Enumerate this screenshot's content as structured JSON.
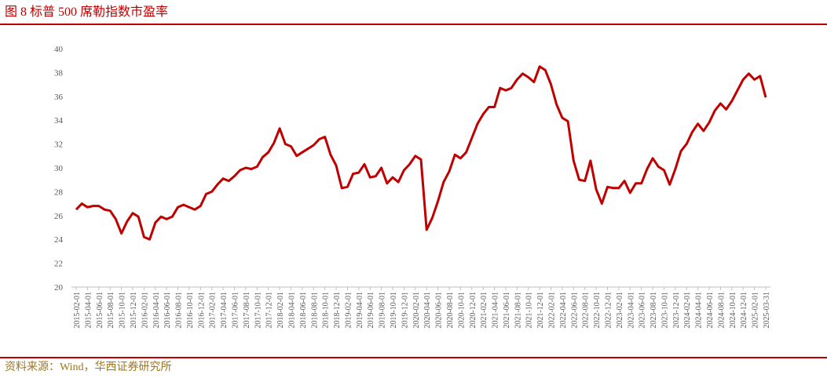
{
  "chart_data": {
    "type": "line",
    "title": "图 8  标普 500 席勒指数市盈率",
    "source": "资料来源：Wind，华西证券研究所",
    "color": "#C00000",
    "ylim": [
      20,
      40
    ],
    "yticks": [
      20,
      22,
      24,
      26,
      28,
      30,
      32,
      34,
      36,
      38,
      40
    ],
    "grid": false,
    "categories": [
      "2015-02-01",
      null,
      "2015-04-01",
      null,
      "2015-06-01",
      null,
      "2015-08-01",
      null,
      "2015-10-01",
      null,
      "2015-12-01",
      null,
      "2016-02-01",
      null,
      "2016-04-01",
      null,
      "2016-06-01",
      null,
      "2016-08-01",
      null,
      "2016-10-01",
      null,
      "2016-12-01",
      null,
      "2017-02-01",
      null,
      "2017-04-01",
      null,
      "2017-06-01",
      null,
      "2017-08-01",
      null,
      "2017-10-01",
      null,
      "2017-12-01",
      null,
      "2018-02-01",
      null,
      "2018-04-01",
      null,
      "2018-06-01",
      null,
      "2018-08-01",
      null,
      "2018-10-01",
      null,
      "2018-12-01",
      null,
      "2019-02-01",
      null,
      "2019-04-01",
      null,
      "2019-06-01",
      null,
      "2019-08-01",
      null,
      "2019-10-01",
      null,
      "2019-12-01",
      null,
      "2020-02-01",
      null,
      "2020-04-01",
      null,
      "2020-06-01",
      null,
      "2020-08-01",
      null,
      "2020-10-01",
      null,
      "2020-12-01",
      null,
      "2021-02-01",
      null,
      "2021-04-01",
      null,
      "2021-06-01",
      null,
      "2021-08-01",
      null,
      "2021-10-01",
      null,
      "2021-12-01",
      null,
      "2022-02-01",
      null,
      "2022-04-01",
      null,
      "2022-06-01",
      null,
      "2022-08-01",
      null,
      "2022-10-01",
      null,
      "2022-12-01",
      null,
      "2023-02-01",
      null,
      "2023-04-01",
      null,
      "2023-06-01",
      null,
      "2023-08-01",
      null,
      "2023-10-01",
      null,
      "2023-12-01",
      null,
      "2024-02-01",
      null,
      "2024-04-01",
      null,
      "2024-06-01",
      null,
      "2024-08-01",
      null,
      "2024-10-01",
      null,
      "2024-12-01",
      null,
      "2025-02-01",
      null,
      "2025-03-31"
    ],
    "values": [
      26.5,
      27.0,
      26.7,
      26.8,
      26.8,
      26.5,
      26.4,
      25.7,
      24.5,
      25.5,
      26.2,
      25.9,
      24.2,
      24.0,
      25.4,
      25.9,
      25.7,
      25.9,
      26.7,
      26.9,
      26.7,
      26.5,
      26.8,
      27.8,
      28.0,
      28.6,
      29.1,
      28.9,
      29.3,
      29.8,
      30.0,
      29.9,
      30.1,
      30.9,
      31.3,
      32.1,
      33.3,
      32.0,
      31.8,
      31.0,
      31.3,
      31.6,
      31.9,
      32.4,
      32.6,
      31.1,
      30.2,
      28.3,
      28.4,
      29.5,
      29.6,
      30.3,
      29.2,
      29.3,
      30.0,
      28.7,
      29.2,
      28.8,
      29.8,
      30.3,
      31.0,
      30.7,
      24.8,
      25.8,
      27.2,
      28.8,
      29.7,
      31.1,
      30.8,
      31.3,
      32.5,
      33.7,
      34.5,
      35.1,
      35.1,
      36.7,
      36.5,
      36.7,
      37.4,
      37.9,
      37.6,
      37.2,
      38.5,
      38.2,
      37.0,
      35.3,
      34.2,
      33.9,
      30.6,
      29.0,
      28.9,
      30.6,
      28.2,
      27.0,
      28.4,
      28.3,
      28.3,
      28.9,
      27.9,
      28.7,
      28.7,
      29.9,
      30.8,
      30.1,
      29.8,
      28.6,
      29.9,
      31.4,
      32.0,
      33.0,
      33.7,
      33.1,
      33.8,
      34.8,
      35.4,
      34.9,
      35.6,
      36.5,
      37.4,
      37.9,
      37.4,
      37.7,
      35.9
    ]
  }
}
